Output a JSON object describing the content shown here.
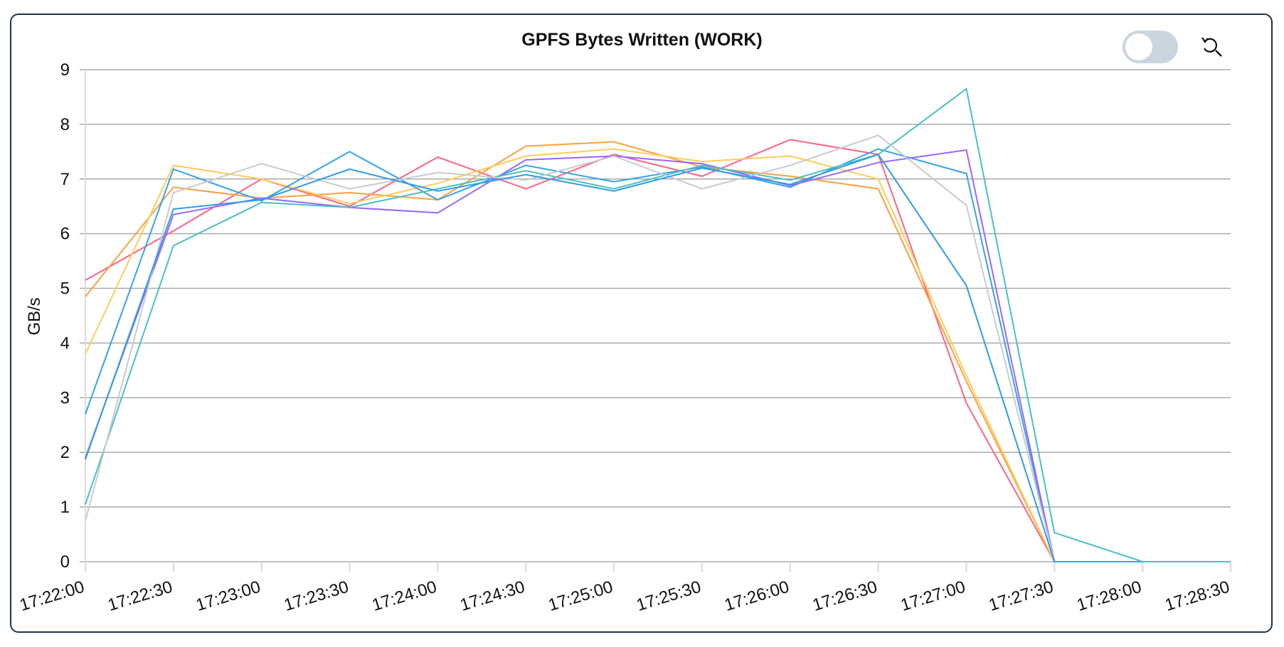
{
  "chart_data": {
    "type": "line",
    "title": "GPFS Bytes Written (WORK)",
    "xlabel": "",
    "ylabel": "GB/s",
    "ylim": [
      0,
      9
    ],
    "grid": true,
    "x": [
      "17:22:00",
      "17:22:30",
      "17:23:00",
      "17:23:30",
      "17:24:00",
      "17:24:30",
      "17:25:00",
      "17:25:30",
      "17:26:00",
      "17:26:30",
      "17:27:00",
      "17:27:30",
      "17:28:00",
      "17:28:30"
    ],
    "yticks": [
      "0",
      "1",
      "2",
      "3",
      "4",
      "5",
      "6",
      "7",
      "8",
      "9"
    ],
    "series": [
      {
        "color": "#ff6384",
        "values": [
          5.15,
          6.05,
          7.0,
          6.5,
          7.4,
          6.82,
          7.45,
          7.05,
          7.72,
          7.45,
          2.9,
          0,
          null,
          null
        ]
      },
      {
        "color": "#ff9f40",
        "values": [
          4.85,
          6.85,
          6.65,
          6.75,
          6.62,
          7.6,
          7.68,
          7.22,
          7.05,
          6.82,
          3.3,
          0,
          null,
          null
        ]
      },
      {
        "color": "#ffcd56",
        "values": [
          3.8,
          7.25,
          7.0,
          6.55,
          6.92,
          7.42,
          7.55,
          7.32,
          7.42,
          7.0,
          3.4,
          0,
          null,
          null
        ]
      },
      {
        "color": "#36a2eb",
        "values": [
          2.7,
          7.18,
          6.6,
          7.5,
          6.62,
          7.25,
          6.95,
          7.22,
          6.85,
          7.55,
          7.1,
          0,
          0,
          0
        ]
      },
      {
        "color": "#9966ff",
        "values": [
          1.9,
          6.35,
          6.65,
          6.48,
          6.38,
          7.35,
          7.42,
          7.28,
          6.88,
          7.3,
          7.53,
          0,
          null,
          null
        ]
      },
      {
        "color": "#4bc0c0",
        "values": [
          1.05,
          5.78,
          6.57,
          6.48,
          6.82,
          7.15,
          6.82,
          7.25,
          6.98,
          7.45,
          8.65,
          0.53,
          0,
          0
        ]
      },
      {
        "color": "#c9cbcf",
        "values": [
          0.75,
          6.75,
          7.28,
          6.82,
          7.12,
          6.98,
          7.42,
          6.82,
          7.25,
          7.8,
          6.52,
          0,
          null,
          null
        ]
      },
      {
        "color": "#2f9be8",
        "values": [
          1.87,
          6.45,
          6.62,
          7.18,
          6.78,
          7.08,
          6.78,
          7.2,
          6.9,
          7.45,
          5.05,
          0,
          null,
          null
        ]
      }
    ]
  }
}
